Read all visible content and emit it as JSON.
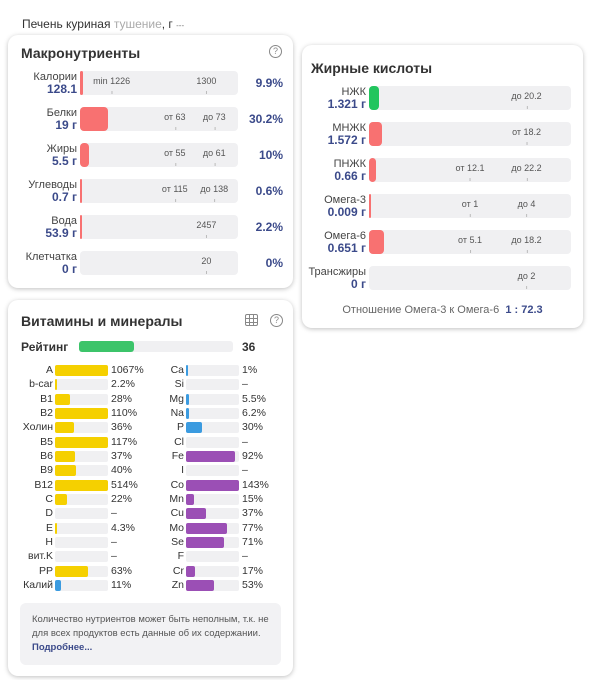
{
  "header": {
    "product": "Печень куриная",
    "method": "тушение",
    "unit": ", г",
    "more": "---"
  },
  "macro": {
    "title": "Макронутриенты",
    "help": "?",
    "rows": [
      {
        "name": "Калории",
        "value": "128.1",
        "fill": 0.02,
        "ticks": [
          "min 1226",
          "1300"
        ],
        "pct": "9.9%",
        "color": "#f87171"
      },
      {
        "name": "Белки",
        "value": "19 г",
        "fill": 0.18,
        "ticks": [
          "от 63",
          "до 73"
        ],
        "pct": "30.2%",
        "color": "#f87171"
      },
      {
        "name": "Жиры",
        "value": "5.5 г",
        "fill": 0.06,
        "ticks": [
          "от 55",
          "до 61"
        ],
        "pct": "10%",
        "color": "#f87171"
      },
      {
        "name": "Углеводы",
        "value": "0.7 г",
        "fill": 0.005,
        "ticks": [
          "от 115",
          "до 138"
        ],
        "pct": "0.6%",
        "color": "#f87171"
      },
      {
        "name": "Вода",
        "value": "53.9 г",
        "fill": 0.012,
        "ticks": [
          "2457"
        ],
        "pct": "2.2%",
        "color": "#f87171"
      },
      {
        "name": "Клетчатка",
        "value": "0 г",
        "fill": 0,
        "ticks": [
          "20"
        ],
        "pct": "0%",
        "color": "#f87171"
      }
    ]
  },
  "fats": {
    "title": "Жирные кислоты",
    "rows": [
      {
        "name": "НЖК",
        "value": "1.321 г",
        "fill": 0.05,
        "ticks": [
          "до 20.2"
        ],
        "color": "#22c55e"
      },
      {
        "name": "МНЖК",
        "value": "1.572 г",
        "fill": 0.065,
        "ticks": [
          "от 18.2"
        ],
        "color": "#f87171"
      },
      {
        "name": "ПНЖК",
        "value": "0.66 г",
        "fill": 0.035,
        "ticks": [
          "от 12.1",
          "до 22.2"
        ],
        "color": "#f87171"
      },
      {
        "name": "Омега-3",
        "value": "0.009 г",
        "fill": 0.004,
        "ticks": [
          "от 1",
          "до 4"
        ],
        "color": "#f87171"
      },
      {
        "name": "Омега-6",
        "value": "0.651 г",
        "fill": 0.075,
        "ticks": [
          "от 5.1",
          "до 18.2"
        ],
        "color": "#f87171"
      },
      {
        "name": "Трансжиры",
        "value": "0 г",
        "fill": 0,
        "ticks": [
          "до 2"
        ],
        "color": "#f87171"
      }
    ],
    "ratio_label": "Отношение Омега-3 к Омега-6",
    "ratio_value": "1 : 72.3"
  },
  "vitamins": {
    "title": "Витамины и минералы",
    "help": "?",
    "rating_label": "Рейтинг",
    "rating_value": "36",
    "rating_fill": 0.36,
    "left": [
      {
        "n": "A",
        "p": "1067%",
        "v": 1067
      },
      {
        "n": "b-car",
        "p": "2.2%",
        "v": 2.2
      },
      {
        "n": "B1",
        "p": "28%",
        "v": 28
      },
      {
        "n": "B2",
        "p": "110%",
        "v": 110
      },
      {
        "n": "Холин",
        "p": "36%",
        "v": 36
      },
      {
        "n": "B5",
        "p": "117%",
        "v": 117
      },
      {
        "n": "B6",
        "p": "37%",
        "v": 37
      },
      {
        "n": "B9",
        "p": "40%",
        "v": 40
      },
      {
        "n": "B12",
        "p": "514%",
        "v": 514
      },
      {
        "n": "C",
        "p": "22%",
        "v": 22
      },
      {
        "n": "D",
        "p": "–",
        "v": 0
      },
      {
        "n": "E",
        "p": "4.3%",
        "v": 4.3
      },
      {
        "n": "H",
        "p": "–",
        "v": 0
      },
      {
        "n": "вит.K",
        "p": "–",
        "v": 0
      },
      {
        "n": "PP",
        "p": "63%",
        "v": 63
      },
      {
        "n": "Калий",
        "p": "11%",
        "v": 11,
        "c": "blue"
      }
    ],
    "right": [
      {
        "n": "Ca",
        "p": "1%",
        "v": 1,
        "c": "blue"
      },
      {
        "n": "Si",
        "p": "–",
        "v": 0
      },
      {
        "n": "Mg",
        "p": "5.5%",
        "v": 5.5,
        "c": "blue"
      },
      {
        "n": "Na",
        "p": "6.2%",
        "v": 6.2,
        "c": "blue"
      },
      {
        "n": "P",
        "p": "30%",
        "v": 30,
        "c": "blue"
      },
      {
        "n": "Cl",
        "p": "–",
        "v": 0
      },
      {
        "n": "Fe",
        "p": "92%",
        "v": 92,
        "c": "purple"
      },
      {
        "n": "I",
        "p": "–",
        "v": 0
      },
      {
        "n": "Co",
        "p": "143%",
        "v": 143,
        "c": "purple"
      },
      {
        "n": "Mn",
        "p": "15%",
        "v": 15,
        "c": "purple"
      },
      {
        "n": "Cu",
        "p": "37%",
        "v": 37,
        "c": "purple"
      },
      {
        "n": "Mo",
        "p": "77%",
        "v": 77,
        "c": "purple"
      },
      {
        "n": "Se",
        "p": "71%",
        "v": 71,
        "c": "purple"
      },
      {
        "n": "F",
        "p": "–",
        "v": 0
      },
      {
        "n": "Cr",
        "p": "17%",
        "v": 17,
        "c": "purple"
      },
      {
        "n": "Zn",
        "p": "53%",
        "v": 53,
        "c": "purple"
      }
    ],
    "note": "Количество нутриентов может быть неполным, т.к. не для всех продуктов есть данные об их содержании.",
    "note_link": "Подробнее..."
  },
  "colors": {
    "yellow": "#f5d000",
    "blue": "#3b9be0",
    "purple": "#9b4fb5",
    "green": "#3cc46a"
  }
}
